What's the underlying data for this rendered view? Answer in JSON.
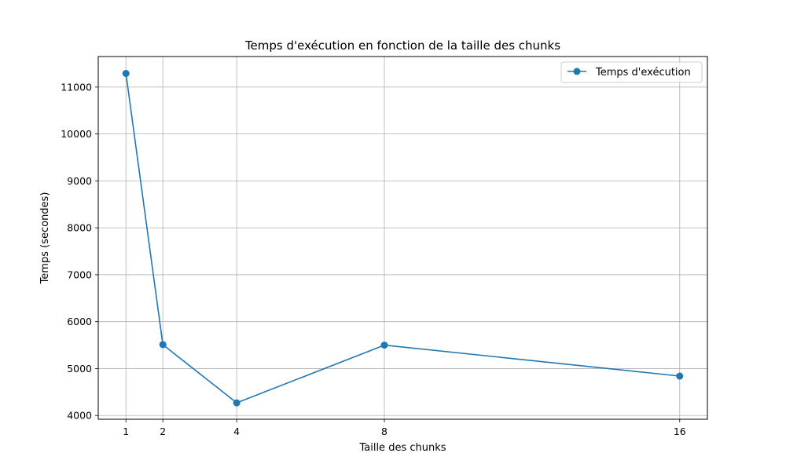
{
  "chart_data": {
    "type": "line",
    "title": "Temps d'exécution en fonction de la taille des chunks",
    "xlabel": "Taille des chunks",
    "ylabel": "Temps (secondes)",
    "x": [
      1,
      2,
      4,
      8,
      16
    ],
    "xticks": [
      "1",
      "2",
      "4",
      "8",
      "16"
    ],
    "yticks": [
      "4000",
      "5000",
      "6000",
      "7000",
      "8000",
      "9000",
      "10000",
      "11000"
    ],
    "xlim": [
      0.25,
      16.75
    ],
    "ylim": [
      3920,
      11650
    ],
    "series": [
      {
        "name": "Temps d'exécution",
        "values": [
          11290,
          5510,
          4270,
          5500,
          4840
        ],
        "color": "#1f77b4",
        "marker": "circle"
      }
    ],
    "grid": true,
    "legend": "top-right"
  }
}
